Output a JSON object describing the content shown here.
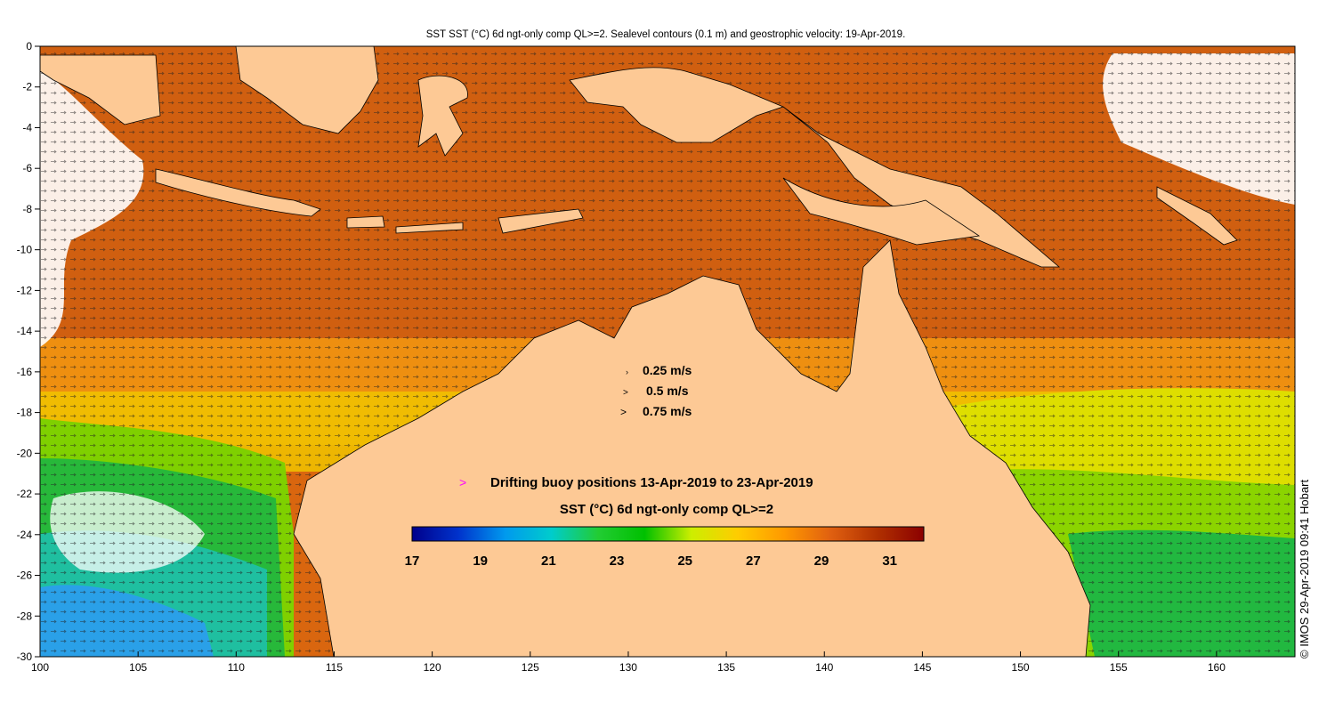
{
  "title": "SST SST (°C) 6d ngt-only comp QL>=2. Sealevel contours (0.1 m) and geostrophic velocity: 19-Apr-2019.",
  "axes": {
    "lon_ticks": [
      "100",
      "105",
      "110",
      "115",
      "120",
      "125",
      "130",
      "135",
      "140",
      "145",
      "150",
      "155",
      "160"
    ],
    "lat_ticks": [
      "0",
      "-2",
      "-4",
      "-6",
      "-8",
      "-10",
      "-12",
      "-14",
      "-16",
      "-18",
      "-20",
      "-22",
      "-24",
      "-26",
      "-28",
      "-30"
    ],
    "lon_range": [
      100,
      164
    ],
    "lat_range": [
      -30,
      0
    ]
  },
  "velocity_legend": {
    "items": [
      "0.25 m/s",
      "0.5 m/s",
      "0.75 m/s"
    ]
  },
  "buoy_legend": {
    "marker": ">",
    "label": "Drifting buoy positions 13-Apr-2019 to 23-Apr-2019",
    "marker_color": "#ff00ff"
  },
  "colorbar": {
    "title": "SST (°C) 6d ngt-only comp QL>=2",
    "range": [
      17,
      32
    ],
    "tick_labels": [
      "17",
      "19",
      "21",
      "23",
      "25",
      "27",
      "29",
      "31"
    ],
    "stops": [
      "#00008b",
      "#0033cc",
      "#0099ee",
      "#00cccc",
      "#22cc33",
      "#00c000",
      "#ccee00",
      "#ffcc00",
      "#ff9900",
      "#e06010",
      "#b03000",
      "#8b0000"
    ]
  },
  "credit": "© IMOS 29-Apr-2019 09:41 Hobart",
  "colors": {
    "land": "#fdc995",
    "sst_warm": "#d9660f",
    "sst_hot": "#c45210",
    "sst_orange": "#f09a10",
    "sst_yellow": "#ecd800",
    "sst_green": "#7fd000",
    "sst_deepgreen": "#27b83a",
    "sst_teal": "#1fbfa0",
    "sst_blue": "#2aa0e8"
  }
}
